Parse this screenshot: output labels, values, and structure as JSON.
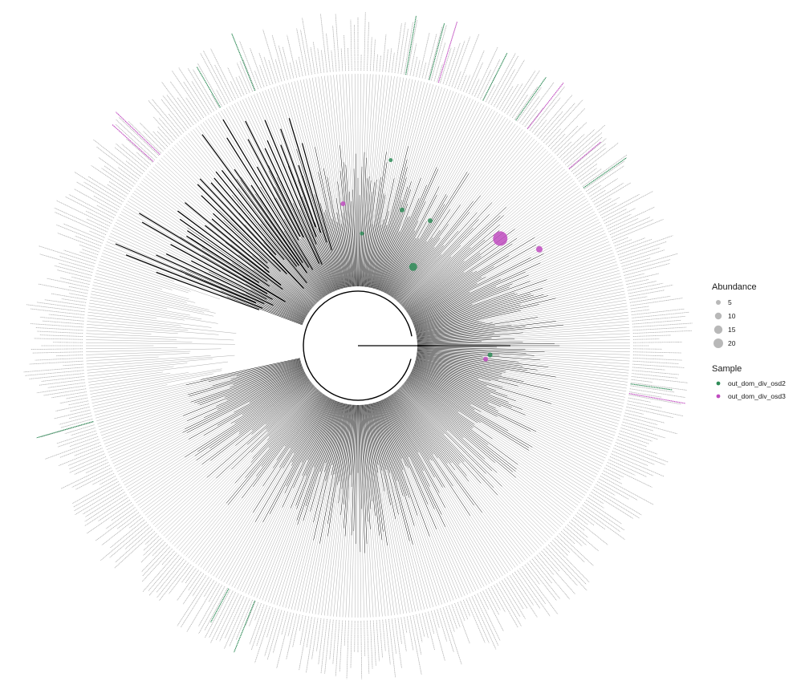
{
  "legend": {
    "abundance": {
      "title": "Abundance",
      "entries": [
        {
          "label": "5",
          "value": 5
        },
        {
          "label": "10",
          "value": 10
        },
        {
          "label": "15",
          "value": 15
        },
        {
          "label": "20",
          "value": 20
        }
      ],
      "symbol_color": "#a6a6a6"
    },
    "sample": {
      "title": "Sample",
      "entries": [
        {
          "label": "out_dom_div_osd2",
          "color": "#2e8b57"
        },
        {
          "label": "out_dom_div_osd3",
          "color": "#c04cc0"
        }
      ]
    }
  },
  "tree": {
    "layout": "circular",
    "branch_color": "#000000",
    "tip_label_color": "#b0b0b0",
    "highlighted_tips": [
      {
        "sample": "out_dom_div_osd2",
        "abundance": 5
      },
      {
        "sample": "out_dom_div_osd2",
        "abundance": 10
      },
      {
        "sample": "out_dom_div_osd2",
        "abundance": 15
      },
      {
        "sample": "out_dom_div_osd3",
        "abundance": 5
      },
      {
        "sample": "out_dom_div_osd3",
        "abundance": 20
      }
    ]
  }
}
